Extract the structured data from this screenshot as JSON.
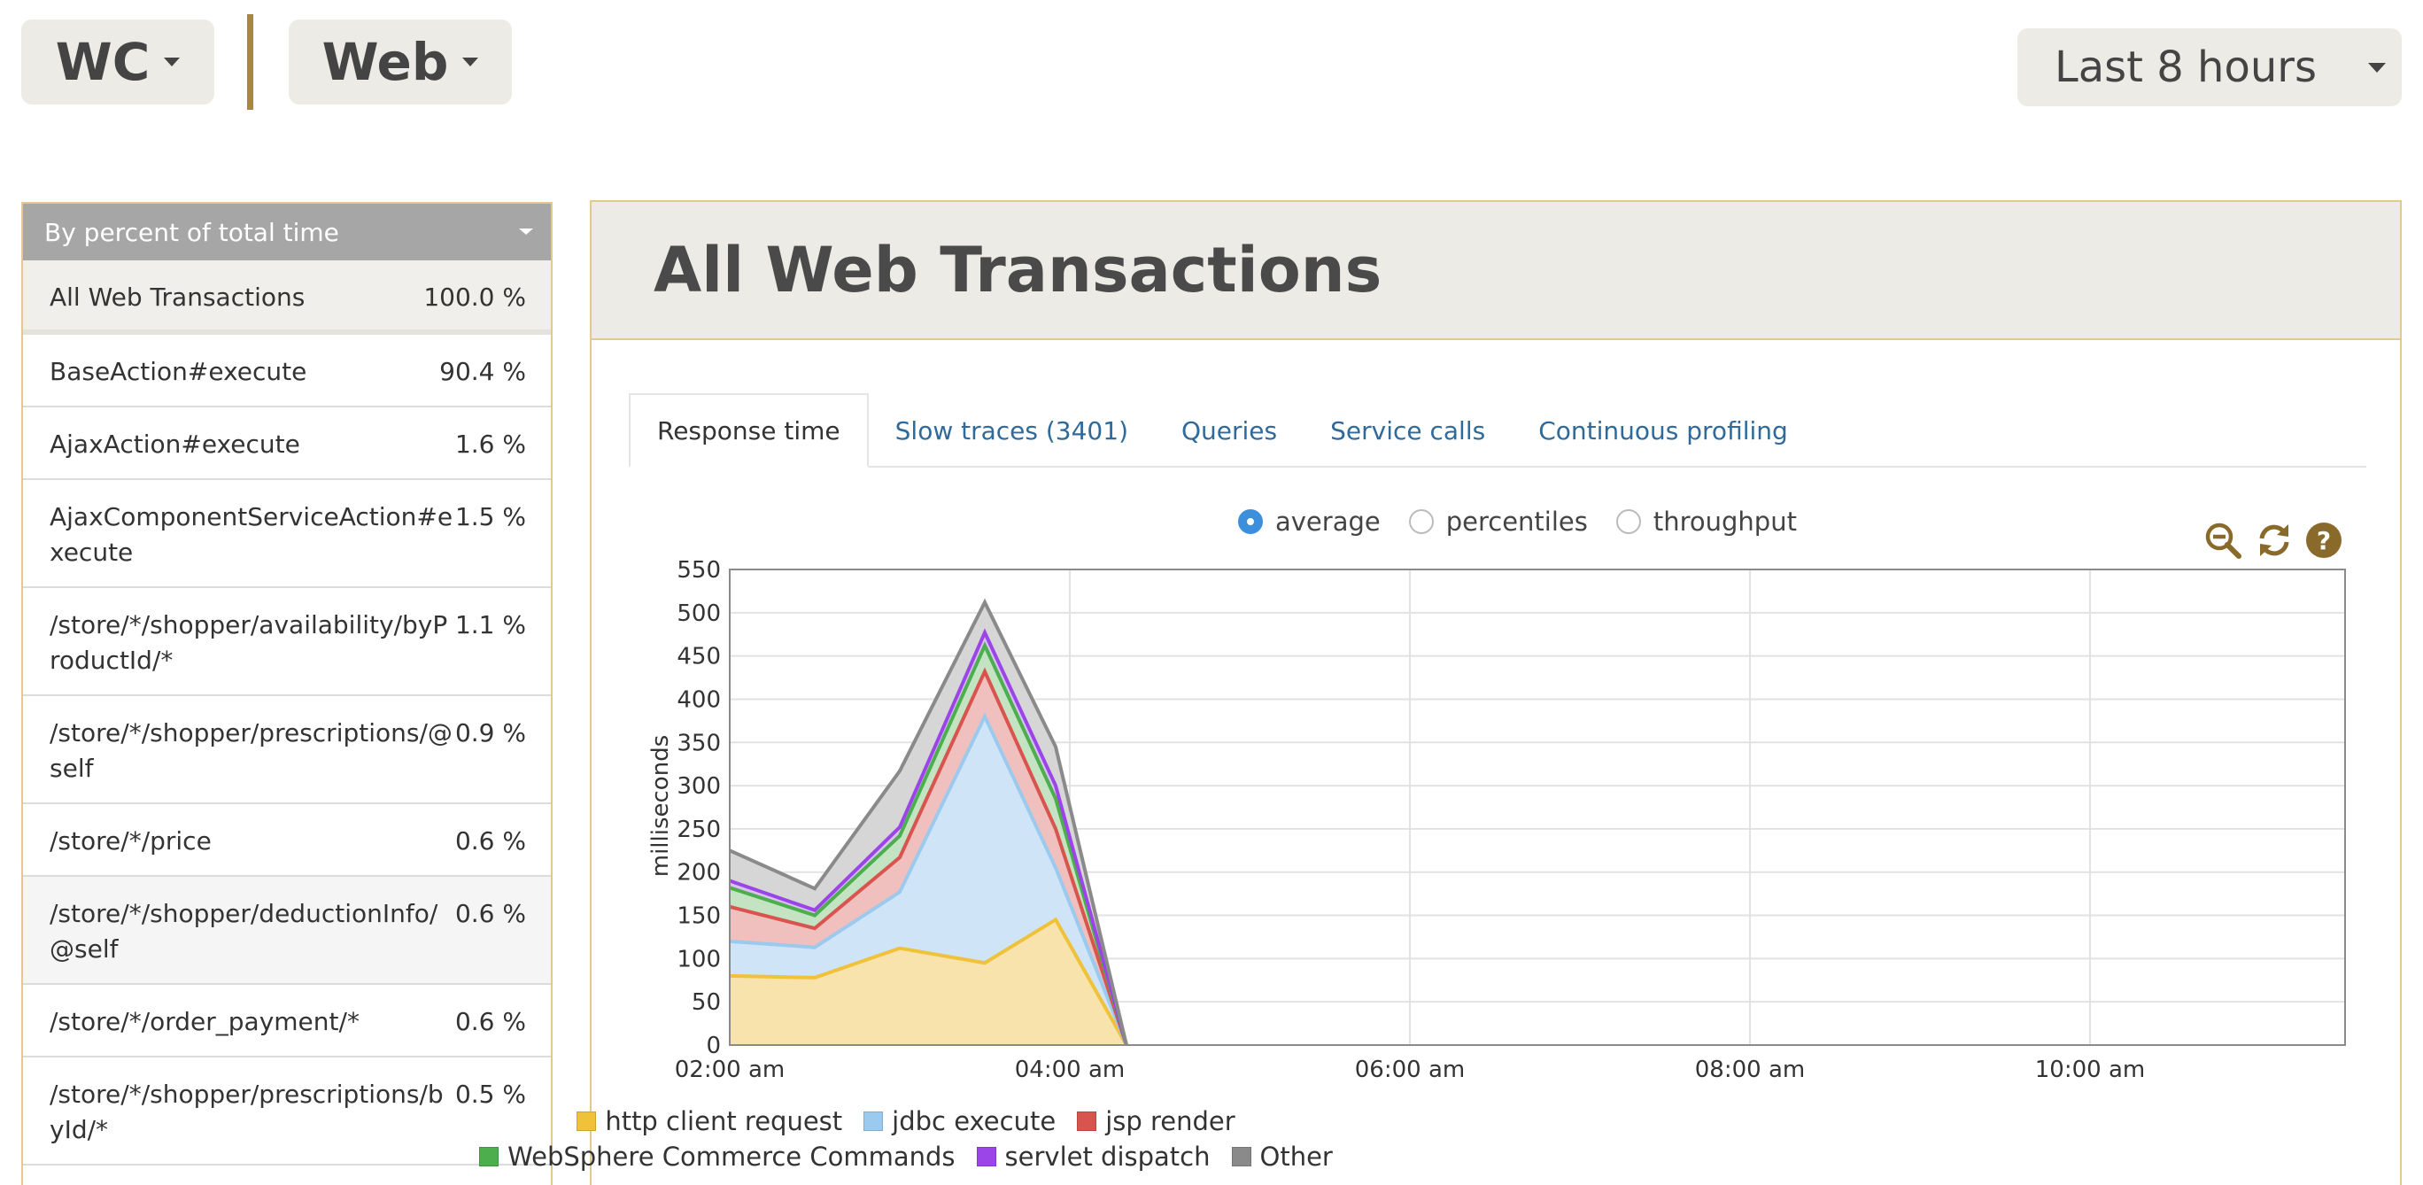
{
  "header": {
    "agent": "WC",
    "transaction_type": "Web",
    "time_range": "Last 8 hours"
  },
  "sidebar": {
    "sort_label": "By percent of total time",
    "items": [
      {
        "name": "All Web Transactions",
        "pct": "100.0 %"
      },
      {
        "name": "BaseAction#execute",
        "pct": "90.4 %"
      },
      {
        "name": "AjaxAction#execute",
        "pct": "1.6 %"
      },
      {
        "name": "AjaxComponentServiceAction#execute",
        "pct": "1.5 %"
      },
      {
        "name": "/store/*/shopper/availability/byProductId/*",
        "pct": "1.1 %"
      },
      {
        "name": "/store/*/shopper/prescriptions/@self",
        "pct": "0.9 %"
      },
      {
        "name": "/store/*/price",
        "pct": "0.6 %"
      },
      {
        "name": "/store/*/shopper/deductionInfo/@self",
        "pct": "0.6 %"
      },
      {
        "name": "/store/*/order_payment/*",
        "pct": "0.6 %"
      },
      {
        "name": "/store/*/shopper/prescriptions/byId/*",
        "pct": "0.5 %"
      }
    ]
  },
  "main": {
    "title": "All Web Transactions",
    "tabs": [
      {
        "label": "Response time"
      },
      {
        "label": "Slow traces (3401)"
      },
      {
        "label": "Queries"
      },
      {
        "label": "Service calls"
      },
      {
        "label": "Continuous profiling"
      }
    ],
    "radios": [
      {
        "label": "average",
        "selected": true
      },
      {
        "label": "percentiles",
        "selected": false
      },
      {
        "label": "throughput",
        "selected": false
      }
    ],
    "tools": {
      "zoom_out": "zoom-out-icon",
      "refresh": "refresh-icon",
      "help": "help-icon"
    }
  },
  "chart_data": {
    "type": "area",
    "stacked": true,
    "ylabel": "milliseconds",
    "ylim": [
      0,
      550
    ],
    "yticks": [
      0,
      50,
      100,
      150,
      200,
      250,
      300,
      350,
      400,
      450,
      500,
      550
    ],
    "xlim": [
      "02:00 am",
      "11:30 am"
    ],
    "xticks": [
      "02:00 am",
      "04:00 am",
      "06:00 am",
      "08:00 am",
      "10:00 am"
    ],
    "x": [
      "02:00 am",
      "02:30 am",
      "03:00 am",
      "03:30 am",
      "03:55 am",
      "04:20 am"
    ],
    "grid": true,
    "legend_position": "bottom",
    "series": [
      {
        "name": "http client request",
        "color": "#f0c23a",
        "fill": "#f7e3ab",
        "values": [
          80,
          78,
          112,
          95,
          145,
          0
        ]
      },
      {
        "name": "jdbc execute",
        "color": "#9ccaee",
        "fill": "#cfe4f6",
        "values": [
          40,
          35,
          65,
          285,
          60,
          0
        ]
      },
      {
        "name": "jsp render",
        "color": "#d9534f",
        "fill": "#efc0bd",
        "values": [
          40,
          22,
          40,
          52,
          45,
          0
        ]
      },
      {
        "name": "WebSphere Commerce Commands",
        "color": "#4cae4c",
        "fill": "#c3e3c3",
        "values": [
          22,
          15,
          25,
          30,
          35,
          0
        ]
      },
      {
        "name": "servlet dispatch",
        "color": "#9b45e8",
        "fill": "#d9c2f3",
        "values": [
          8,
          6,
          10,
          15,
          15,
          0
        ]
      },
      {
        "name": "Other",
        "color": "#8a8a8a",
        "fill": "#d6d6d6",
        "values": [
          35,
          25,
          65,
          35,
          45,
          0
        ]
      }
    ]
  }
}
